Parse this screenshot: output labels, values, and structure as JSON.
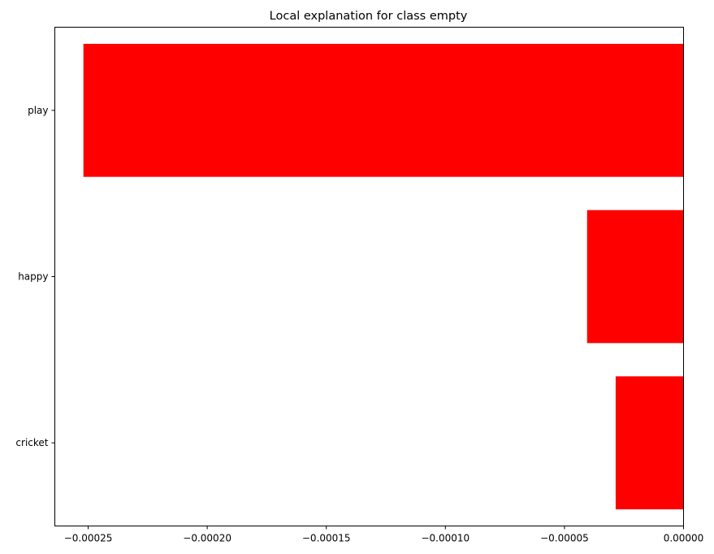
{
  "chart_data": {
    "type": "bar",
    "orientation": "horizontal",
    "title": "Local explanation for class empty",
    "xlabel": "",
    "ylabel": "",
    "categories": [
      "play",
      "happy",
      "cricket"
    ],
    "values": [
      -0.000252,
      -4.05e-05,
      -2.85e-05
    ],
    "xlim": [
      -0.000264,
      0.0
    ],
    "xticks": [
      -0.00025,
      -0.0002,
      -0.00015,
      -0.0001,
      -5e-05,
      0.0
    ],
    "xtick_labels": [
      "−0.00025",
      "−0.00020",
      "−0.00015",
      "−0.00010",
      "−0.00005",
      "0.00000"
    ],
    "bar_color": "#ff0000",
    "grid": false,
    "legend": "none"
  }
}
